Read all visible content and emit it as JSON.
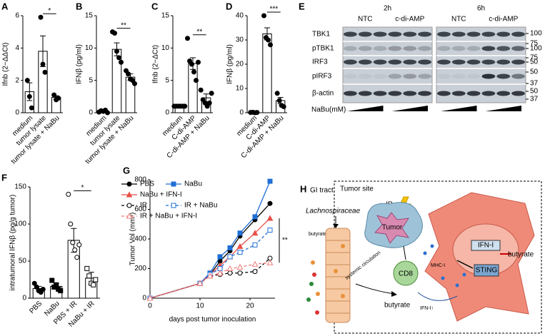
{
  "chart_data": [
    {
      "type": "bar",
      "panel": "A",
      "ylabel": "Ifnb (2−ΔΔCt)",
      "categories": [
        "medium",
        "tumor lysate",
        "tumor lysate + NaBu"
      ],
      "values": [
        1.3,
        3.8,
        0.95
      ],
      "errors": [
        0.55,
        0.95,
        0.1
      ],
      "points": [
        [
          2.0,
          1.0,
          0.3
        ],
        [
          5.9,
          3.0,
          2.5
        ],
        [
          1.1,
          0.8,
          0.9
        ]
      ],
      "markers": [
        "circle",
        "circle",
        "circle"
      ],
      "ylim": [
        0,
        6
      ],
      "yticks": [
        0,
        2,
        4,
        6
      ],
      "significance": "*"
    },
    {
      "type": "bar",
      "panel": "B",
      "ylabel": "IFNβ (pg/ml)",
      "categories": [
        "medium",
        "tumor lysate",
        "tumor lysate + NaBu"
      ],
      "values": [
        0.2,
        9.8,
        5.5
      ],
      "errors": [
        0.2,
        1.0,
        0.5
      ],
      "points": [
        [
          0.1,
          0.3,
          0.2,
          0.4,
          0
        ],
        [
          12.5,
          12.3,
          9.5,
          8.5,
          7.8
        ],
        [
          6.5,
          6.0,
          5.2,
          5.0,
          4.5
        ]
      ],
      "markers": [
        "circle",
        "circle",
        "circle"
      ],
      "ylim": [
        0,
        15
      ],
      "yticks": [
        0,
        5,
        10,
        15
      ],
      "significance": "**"
    },
    {
      "type": "bar",
      "panel": "C",
      "ylabel": "Ifnb (2−ΔCt)",
      "categories": [
        "medium",
        "C-di-AMP",
        "C-di-AMP + NaBu"
      ],
      "values": [
        1.0,
        7.6,
        2.3
      ],
      "errors": [
        0.05,
        0.9,
        0.6
      ],
      "points": [
        [
          1.0,
          1.0,
          1.0,
          1.0,
          1.0,
          1.0
        ],
        [
          11.5,
          8.0,
          7.5,
          6.3,
          5.0,
          7.8
        ],
        [
          3.5,
          2.0,
          1.5,
          1.0,
          1.5,
          3.0
        ]
      ],
      "markers": [
        "circle",
        "circle",
        "circle"
      ],
      "ylim": [
        0,
        15
      ],
      "yticks": [
        0,
        5,
        10,
        15
      ],
      "significance": "**"
    },
    {
      "type": "bar",
      "panel": "D",
      "ylabel": "IFNβ (pg/ml)",
      "categories": [
        "medium",
        "C-di-AMP",
        "C-di-AMP + NaBu"
      ],
      "values": [
        0.1,
        32.5,
        5.0
      ],
      "errors": [
        0.1,
        2.5,
        1.3
      ],
      "points": [
        [
          0.1,
          0.2,
          0,
          0.1
        ],
        [
          40,
          31,
          30,
          28
        ],
        [
          8,
          5,
          3,
          2.5
        ]
      ],
      "markers": [
        "circle",
        "circle",
        "circle"
      ],
      "ylim": [
        0,
        40
      ],
      "yticks": [
        0,
        10,
        20,
        30,
        40
      ],
      "significance": "***"
    },
    {
      "type": "bar",
      "panel": "F",
      "ylabel": "intratumoral IFNβ (pg/g tumor)",
      "categories": [
        "PBS",
        "NaBu",
        "PBS + IR",
        "NaBu + IR"
      ],
      "values": [
        13,
        16,
        78,
        27
      ],
      "errors": [
        3,
        4,
        16,
        8
      ],
      "points": [
        [
          20,
          15,
          10,
          8,
          12
        ],
        [
          24,
          15,
          18,
          12,
          10
        ],
        [
          140,
          100,
          75,
          65,
          55,
          72
        ],
        [
          40,
          30,
          20,
          18,
          25
        ]
      ],
      "markers": [
        "circle",
        "square",
        "circle-open",
        "square-open"
      ],
      "ylim": [
        0,
        150
      ],
      "yticks": [
        0,
        50,
        100,
        150
      ],
      "significance": "*"
    },
    {
      "type": "line",
      "panel": "G",
      "xlabel": "days post tumor inoculation",
      "ylabel": "Tumor Vol (mm³)",
      "x": [
        0,
        10,
        12,
        14,
        16,
        18,
        21,
        24
      ],
      "xlim": [
        0,
        25
      ],
      "xticks": [
        0,
        10,
        20
      ],
      "ylim": [
        0,
        800
      ],
      "yticks": [
        0,
        200,
        400,
        600,
        800
      ],
      "significance": "**",
      "series": [
        {
          "name": "PBS",
          "color": "#000000",
          "marker": "circle",
          "dashed": false,
          "values": [
            0,
            100,
            160,
            250,
            320,
            420,
            530,
            640
          ]
        },
        {
          "name": "NaBu",
          "color": "#1f6fd6",
          "marker": "square",
          "dashed": false,
          "values": [
            0,
            100,
            170,
            280,
            340,
            440,
            550,
            790
          ]
        },
        {
          "name": "NaBu + IFN-I",
          "color": "#e8504a",
          "marker": "triangle",
          "dashed": false,
          "values": [
            0,
            100,
            160,
            220,
            280,
            350,
            440,
            540
          ]
        },
        {
          "name": "IR",
          "color": "#000000",
          "marker": "circle-open",
          "dashed": true,
          "values": [
            0,
            100,
            150,
            160,
            170,
            170,
            180,
            270
          ]
        },
        {
          "name": "IR + NaBu",
          "color": "#1f6fd6",
          "marker": "square-open",
          "dashed": true,
          "values": [
            0,
            100,
            160,
            200,
            280,
            310,
            360,
            460
          ]
        },
        {
          "name": "IR + NaBu + IFN-I",
          "color": "#f07a78",
          "marker": "triangle-open",
          "dashed": true,
          "values": [
            0,
            100,
            150,
            170,
            200,
            210,
            230,
            240
          ]
        }
      ]
    }
  ],
  "blot": {
    "panel": "E",
    "time_labels": [
      "2h",
      "6h"
    ],
    "group_labels": [
      "NTC",
      "c-di-AMP",
      "NTC",
      "c-di-AMP"
    ],
    "rows": [
      "TBK1",
      "pTBK1",
      "IRF3",
      "pIRF3",
      "β-actin"
    ],
    "size_markers": [
      "100",
      "75",
      "100",
      "75",
      "50",
      "50",
      "37",
      "50",
      "37"
    ],
    "treatment": "NaBu(mM)"
  },
  "diagram": {
    "panel": "H",
    "gi_tract": "GI tract",
    "tumor_site": "Tumor site",
    "bacteria": "Lachnospiraceae",
    "butyrate_gut": "butyrate↑",
    "circulation": "systemic circulation",
    "butyrate_circ": "butyrate",
    "ir": "IR",
    "tumor": "Tumor",
    "cd8": "CD8",
    "mhc": "MHC-I",
    "ifn_signal": "IFN-I↑",
    "ifn_nucleus": "IFN-I",
    "sting": "STING",
    "butyrate_cell": "butyrate"
  }
}
